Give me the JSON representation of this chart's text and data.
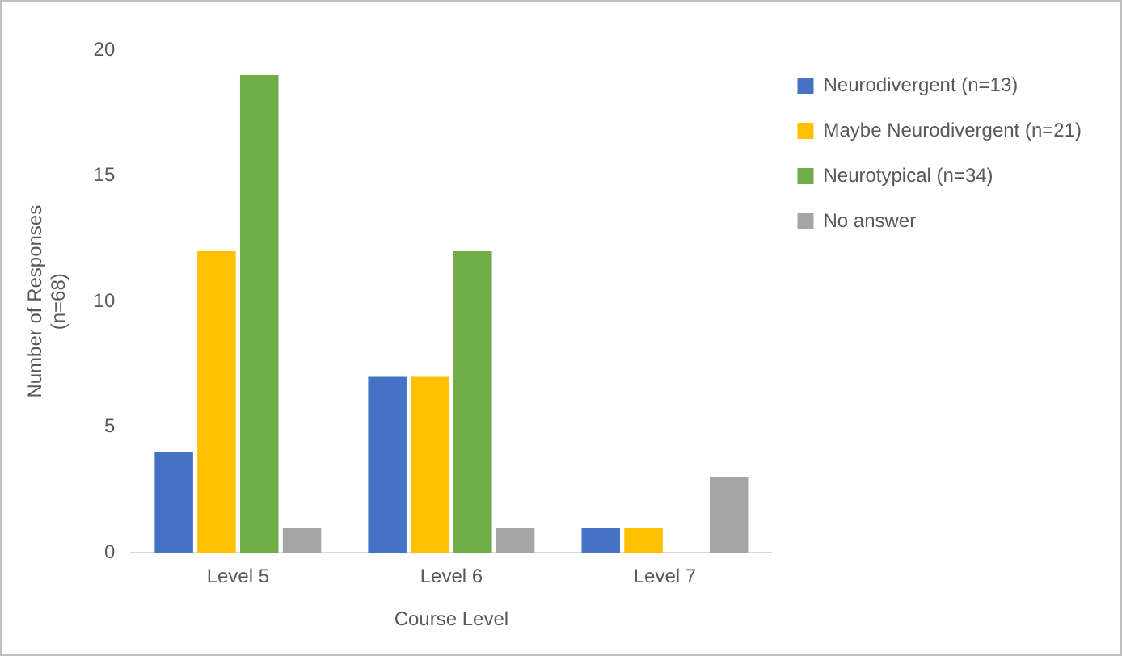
{
  "chart_data": {
    "type": "bar",
    "xlabel": "Course Level",
    "ylabel": "Number of Responses\n(n=68)",
    "categories": [
      "Level 5",
      "Level 6",
      "Level 7"
    ],
    "series": [
      {
        "name": "Neurodivergent (n=13)",
        "color": "#4472c4",
        "values": [
          4,
          7,
          1
        ]
      },
      {
        "name": "Maybe Neurodivergent (n=21)",
        "color": "#ffc000",
        "values": [
          12,
          7,
          1
        ]
      },
      {
        "name": "Neurotypical (n=34)",
        "color": "#70ad47",
        "values": [
          19,
          12,
          0
        ]
      },
      {
        "name": "No answer",
        "color": "#a5a5a5",
        "values": [
          1,
          1,
          3
        ]
      }
    ],
    "ylim": [
      0,
      20
    ],
    "yticks": [
      0,
      5,
      10,
      15,
      20
    ],
    "grid": false,
    "legend": "right"
  }
}
